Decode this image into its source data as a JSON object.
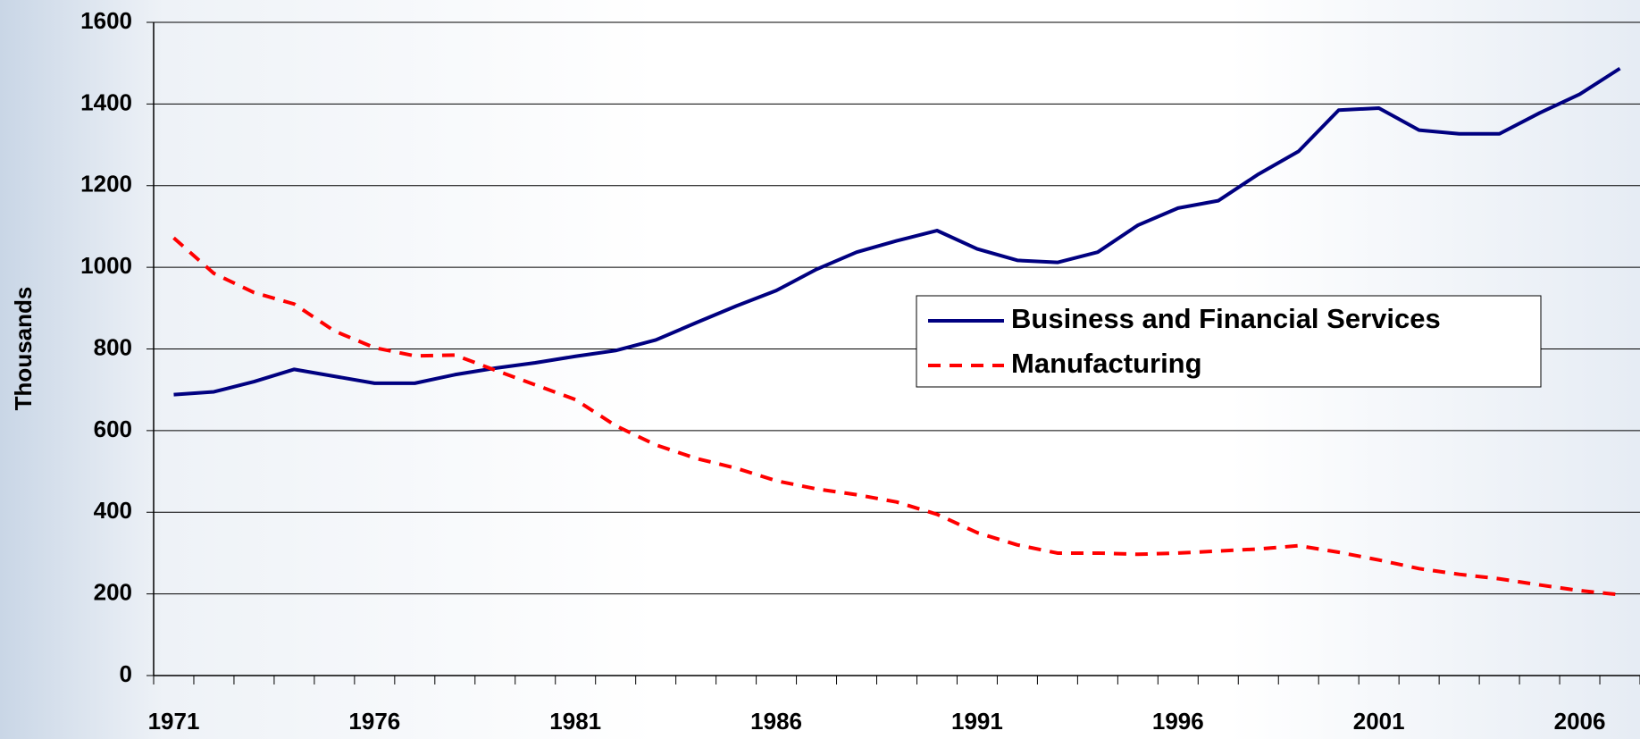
{
  "chart_data": {
    "type": "line",
    "y_label": "Thousands",
    "categories": [
      "1971",
      null,
      null,
      null,
      null,
      "1976",
      null,
      null,
      null,
      null,
      "1981",
      null,
      null,
      null,
      null,
      "1986",
      null,
      null,
      null,
      null,
      "1991",
      null,
      null,
      null,
      null,
      "1996",
      null,
      null,
      null,
      null,
      "2001",
      null,
      null,
      null,
      null,
      "2006",
      null
    ],
    "series": [
      {
        "name": "Business and Financial Services",
        "color": "#000080",
        "dash": false,
        "values": [
          688,
          695,
          720,
          750,
          733,
          716,
          716,
          737,
          753,
          766,
          782,
          796,
          822,
          864,
          905,
          943,
          995,
          1037,
          1065,
          1090,
          1045,
          1017,
          1012,
          1037,
          1103,
          1145,
          1163,
          1228,
          1284,
          1385,
          1390,
          1336,
          1327,
          1327,
          1378,
          1424,
          1487
        ]
      },
      {
        "name": "Manufacturing",
        "color": "#ff0000",
        "dash": true,
        "values": [
          1072,
          985,
          938,
          910,
          844,
          803,
          783,
          785,
          748,
          712,
          676,
          612,
          565,
          532,
          508,
          477,
          457,
          443,
          425,
          395,
          350,
          320,
          300,
          300,
          297,
          300,
          305,
          310,
          318,
          302,
          283,
          262,
          248,
          237,
          222,
          208,
          198
        ]
      }
    ],
    "ylim": [
      0,
      1600
    ],
    "yticks": [
      0,
      200,
      400,
      600,
      800,
      1000,
      1200,
      1400,
      1600
    ],
    "grid": true
  }
}
